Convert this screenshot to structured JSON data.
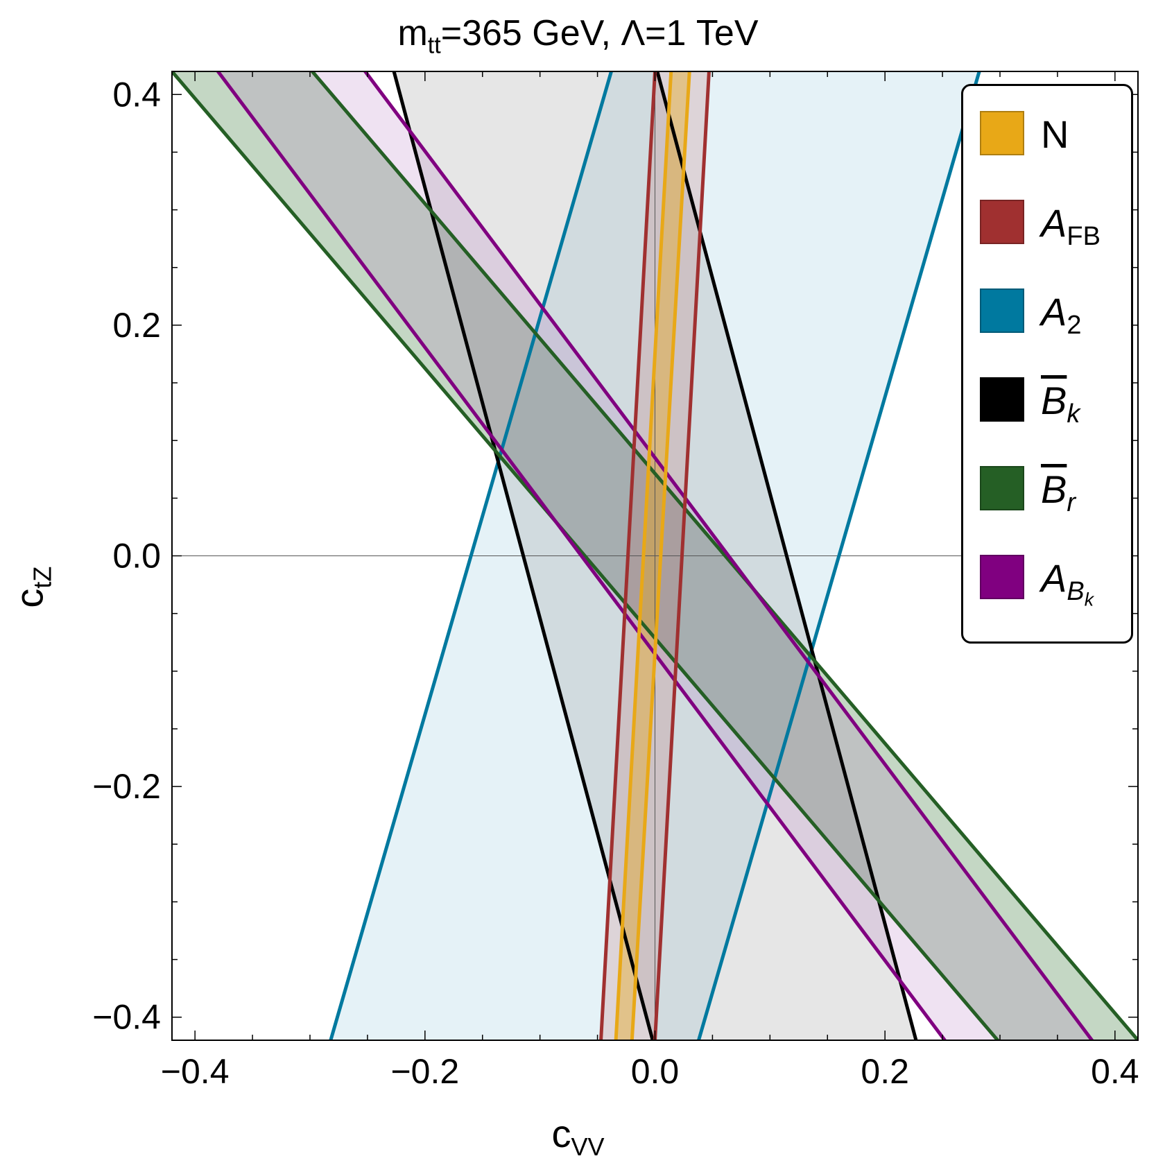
{
  "chart_data": {
    "type": "region",
    "title": {
      "main": "m",
      "sub": "tt",
      "rest": "=365 GeV, Λ=1 TeV"
    },
    "xlabel": {
      "main": "c",
      "sub": "VV"
    },
    "ylabel": {
      "main": "c",
      "sub": "tZ"
    },
    "xlim": [
      -0.42,
      0.42
    ],
    "ylim": [
      -0.42,
      0.42
    ],
    "xticks": [
      -0.4,
      -0.2,
      0.0,
      0.2,
      0.4
    ],
    "xtick_labels": [
      "−0.4",
      "−0.2",
      "0.0",
      "0.2",
      "0.4"
    ],
    "yticks": [
      -0.4,
      -0.2,
      0.0,
      0.2,
      0.4
    ],
    "ytick_labels": [
      "−0.4",
      "−0.2",
      "0.0",
      "0.2",
      "0.4"
    ],
    "series": [
      {
        "name": "A_2",
        "color": "#00799F",
        "fill": "#add8e6",
        "fill_opacity": 0.32,
        "lines": [
          [
            [
              -0.282,
              -0.42
            ],
            [
              -0.038,
              0.42
            ]
          ],
          [
            [
              0.038,
              -0.42
            ],
            [
              0.282,
              0.42
            ]
          ]
        ],
        "region": [
          [
            -0.282,
            -0.42
          ],
          [
            -0.038,
            0.42
          ],
          [
            0.282,
            0.42
          ],
          [
            0.038,
            -0.42
          ]
        ]
      },
      {
        "name": "B̄_k",
        "color": "#000000",
        "fill": "#808080",
        "fill_opacity": 0.2,
        "lines": [
          [
            [
              -0.227,
              0.42
            ],
            [
              -0.002,
              -0.42
            ]
          ],
          [
            [
              0.002,
              0.42
            ],
            [
              0.227,
              -0.42
            ]
          ]
        ],
        "region": [
          [
            -0.227,
            0.42
          ],
          [
            0.002,
            0.42
          ],
          [
            0.227,
            -0.42
          ],
          [
            -0.002,
            -0.42
          ]
        ]
      },
      {
        "name": "B̄_r",
        "color": "#255F25",
        "fill": "#3a7a3a",
        "fill_opacity": 0.3,
        "lines": [
          [
            [
              -0.42,
              0.42
            ],
            [
              0.298,
              -0.42
            ]
          ],
          [
            [
              -0.298,
              0.42
            ],
            [
              0.42,
              -0.42
            ]
          ]
        ],
        "region": [
          [
            -0.42,
            0.42
          ],
          [
            -0.298,
            0.42
          ],
          [
            0.42,
            -0.42
          ],
          [
            0.298,
            -0.42
          ]
        ]
      },
      {
        "name": "A_B_k",
        "color": "#800080",
        "fill": "#b070c0",
        "fill_opacity": 0.2,
        "lines": [
          [
            [
              -0.38,
              0.42
            ],
            [
              0.252,
              -0.42
            ]
          ],
          [
            [
              -0.252,
              0.42
            ],
            [
              0.38,
              -0.42
            ]
          ]
        ],
        "region": [
          [
            -0.38,
            0.42
          ],
          [
            -0.252,
            0.42
          ],
          [
            0.38,
            -0.42
          ],
          [
            0.252,
            -0.42
          ]
        ]
      },
      {
        "name": "A_FB",
        "color": "#A03030",
        "fill": "#c06060",
        "fill_opacity": 0.2,
        "lines": [
          [
            [
              -0.047,
              -0.42
            ],
            [
              0.0,
              0.42
            ]
          ],
          [
            [
              0.0,
              -0.42
            ],
            [
              0.047,
              0.42
            ]
          ]
        ],
        "region": [
          [
            -0.047,
            -0.42
          ],
          [
            0.0,
            0.42
          ],
          [
            0.047,
            0.42
          ],
          [
            0.0,
            -0.42
          ]
        ]
      },
      {
        "name": "N",
        "color": "#E8A817",
        "fill": "#e8a817",
        "fill_opacity": 0.4,
        "lines": [
          [
            [
              -0.034,
              -0.42
            ],
            [
              0.014,
              0.42
            ]
          ],
          [
            [
              -0.02,
              -0.42
            ],
            [
              0.03,
              0.42
            ]
          ]
        ],
        "region": [
          [
            -0.034,
            -0.42
          ],
          [
            0.014,
            0.42
          ],
          [
            0.03,
            0.42
          ],
          [
            -0.02,
            -0.42
          ]
        ]
      }
    ],
    "legend": {
      "position": "top-right",
      "entries": [
        {
          "label": "N",
          "color": "#E8A817"
        },
        {
          "label": "A",
          "sub": "FB",
          "color": "#A03030"
        },
        {
          "label": "A",
          "sub": "2",
          "color": "#00799F"
        },
        {
          "label": "B",
          "sub": "k",
          "overline": true,
          "color": "#000000"
        },
        {
          "label": "B",
          "sub": "r",
          "overline": true,
          "color": "#255F25"
        },
        {
          "label": "A",
          "sub": "B",
          "subsub": "k",
          "color": "#800080"
        }
      ]
    }
  }
}
